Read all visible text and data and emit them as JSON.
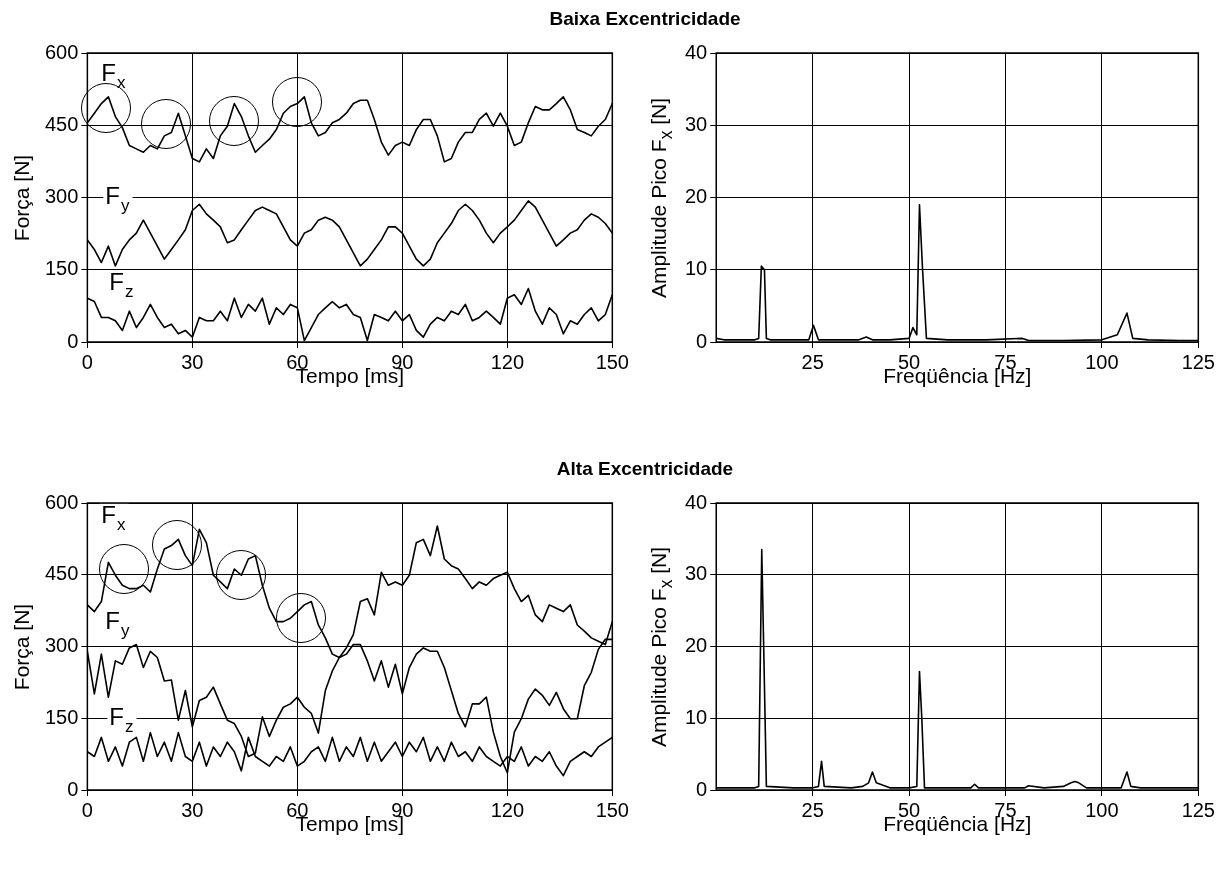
{
  "chart_data": [
    {
      "type": "line",
      "title": "Baixa Excentricidade",
      "xlabel": "Tempo [ms]",
      "ylabel": "Força [N]",
      "xlim": [
        0,
        150
      ],
      "xticks": [
        0,
        30,
        60,
        90,
        120,
        150
      ],
      "ylim": [
        0,
        600
      ],
      "yticks": [
        0,
        150,
        300,
        450,
        600
      ],
      "grid": true,
      "x": [
        0,
        2,
        4,
        6,
        8,
        10,
        12,
        14,
        16,
        18,
        20,
        22,
        24,
        26,
        28,
        30,
        32,
        34,
        36,
        38,
        40,
        42,
        44,
        46,
        48,
        50,
        52,
        54,
        56,
        58,
        60,
        62,
        64,
        66,
        68,
        70,
        72,
        74,
        76,
        78,
        80,
        82,
        84,
        86,
        88,
        90,
        92,
        94,
        96,
        98,
        100,
        102,
        104,
        106,
        108,
        110,
        112,
        114,
        116,
        118,
        120,
        122,
        124,
        126,
        128,
        130,
        132,
        134,
        136,
        138,
        140,
        142,
        144,
        146,
        148,
        150
      ],
      "series": [
        {
          "name": "F$_{x}$",
          "color": "#000000",
          "values": [
            455,
            475,
            495,
            509,
            468,
            445,
            408,
            401,
            394,
            408,
            401,
            428,
            435,
            475,
            428,
            381,
            374,
            401,
            381,
            428,
            448,
            495,
            468,
            428,
            394,
            408,
            421,
            441,
            475,
            489,
            495,
            509,
            455,
            428,
            435,
            455,
            462,
            475,
            495,
            502,
            502,
            462,
            415,
            388,
            408,
            415,
            408,
            441,
            462,
            462,
            428,
            374,
            381,
            415,
            435,
            435,
            462,
            475,
            448,
            475,
            448,
            408,
            415,
            455,
            489,
            482,
            482,
            495,
            509,
            482,
            441,
            435,
            428,
            448,
            462,
            495
          ]
        },
        {
          "name": "F$_{y}$",
          "color": "#000000",
          "values": [
            212,
            192,
            165,
            199,
            158,
            192,
            212,
            226,
            253,
            226,
            199,
            172,
            192,
            212,
            233,
            273,
            286,
            266,
            253,
            239,
            206,
            212,
            233,
            253,
            273,
            280,
            273,
            266,
            239,
            212,
            199,
            226,
            233,
            253,
            259,
            253,
            239,
            212,
            185,
            158,
            172,
            192,
            212,
            239,
            239,
            226,
            199,
            172,
            158,
            172,
            206,
            226,
            246,
            273,
            286,
            273,
            253,
            226,
            206,
            226,
            239,
            253,
            273,
            293,
            280,
            253,
            226,
            199,
            212,
            226,
            233,
            253,
            266,
            259,
            246,
            226
          ]
        },
        {
          "name": "F$_{z}$",
          "color": "#000000",
          "values": [
            91,
            84,
            51,
            51,
            44,
            24,
            64,
            30,
            51,
            78,
            51,
            30,
            37,
            17,
            24,
            10,
            51,
            44,
            44,
            64,
            44,
            91,
            51,
            78,
            64,
            91,
            37,
            71,
            57,
            78,
            71,
            3,
            30,
            57,
            71,
            84,
            71,
            78,
            57,
            51,
            3,
            57,
            51,
            44,
            64,
            44,
            57,
            24,
            10,
            37,
            51,
            44,
            64,
            57,
            78,
            44,
            51,
            64,
            51,
            37,
            91,
            98,
            78,
            111,
            64,
            37,
            71,
            57,
            17,
            44,
            37,
            57,
            71,
            44,
            57,
            98
          ]
        }
      ]
    },
    {
      "type": "line",
      "xlabel": "Freqüência [Hz]",
      "ylabel": "Amplitude Pico  F$_{x}$  [N]",
      "xlim": [
        0,
        125
      ],
      "xticks": [
        25,
        50,
        75,
        100,
        125
      ],
      "ylim": [
        0,
        40
      ],
      "yticks": [
        0,
        10,
        20,
        30,
        40
      ],
      "grid": true,
      "series": [
        {
          "color": "#000000",
          "x": [
            0,
            2,
            4,
            6,
            8,
            10,
            11,
            11.7,
            12.5,
            13,
            14,
            20,
            24,
            25.2,
            26.5,
            30,
            37,
            38.9,
            40.5,
            45,
            50,
            51,
            52,
            52.7,
            53.5,
            54.5,
            60,
            70,
            79.4,
            81,
            90,
            100,
            104,
            106.5,
            108,
            112,
            120,
            125
          ],
          "values": [
            0.5,
            0.3,
            0.3,
            0.3,
            0.3,
            0.3,
            0.5,
            10.5,
            10,
            0.5,
            0.3,
            0.3,
            0.3,
            2.3,
            0.3,
            0.3,
            0.3,
            0.7,
            0.3,
            0.3,
            0.5,
            2,
            1,
            19,
            10,
            0.5,
            0.3,
            0.3,
            0.5,
            0.2,
            0.2,
            0.3,
            1,
            4,
            0.5,
            0.3,
            0.2,
            0.2
          ]
        }
      ]
    },
    {
      "type": "line",
      "title": "Alta Excentricidade",
      "xlabel": "Tempo [ms]",
      "ylabel": "Força [N]",
      "xlim": [
        0,
        150
      ],
      "xticks": [
        0,
        30,
        60,
        90,
        120,
        150
      ],
      "ylim": [
        0,
        600
      ],
      "yticks": [
        0,
        150,
        300,
        450,
        600
      ],
      "grid": true,
      "x": [
        0,
        2,
        4,
        6,
        8,
        10,
        12,
        14,
        16,
        18,
        20,
        22,
        24,
        26,
        28,
        30,
        32,
        34,
        36,
        38,
        40,
        42,
        44,
        46,
        48,
        50,
        52,
        54,
        56,
        58,
        60,
        62,
        64,
        66,
        68,
        70,
        72,
        74,
        76,
        78,
        80,
        82,
        84,
        86,
        88,
        90,
        92,
        94,
        96,
        98,
        100,
        102,
        104,
        106,
        108,
        110,
        112,
        114,
        116,
        118,
        120,
        122,
        124,
        126,
        128,
        130,
        132,
        134,
        136,
        138,
        140,
        142,
        144,
        146,
        148,
        150
      ],
      "series": [
        {
          "name": "F$_{x}$",
          "color": "#000000",
          "values": [
            387,
            373,
            394,
            476,
            449,
            428,
            421,
            421,
            428,
            414,
            462,
            504,
            511,
            524,
            490,
            469,
            545,
            517,
            449,
            435,
            421,
            462,
            449,
            483,
            490,
            428,
            380,
            352,
            352,
            359,
            373,
            387,
            394,
            345,
            318,
            284,
            277,
            297,
            325,
            394,
            400,
            366,
            455,
            428,
            435,
            428,
            449,
            517,
            524,
            490,
            552,
            483,
            469,
            462,
            442,
            421,
            435,
            428,
            442,
            449,
            455,
            421,
            394,
            407,
            366,
            352,
            387,
            380,
            373,
            387,
            345,
            332,
            318,
            311,
            304,
            352
          ]
        },
        {
          "name": "F$_{y}$",
          "color": "#000000",
          "values": [
            290,
            201,
            284,
            194,
            270,
            263,
            297,
            304,
            256,
            290,
            277,
            228,
            230,
            146,
            208,
            132,
            187,
            194,
            215,
            180,
            146,
            139,
            112,
            70,
            77,
            153,
            112,
            146,
            173,
            180,
            194,
            173,
            160,
            119,
            208,
            249,
            277,
            284,
            304,
            304,
            270,
            228,
            270,
            215,
            263,
            201,
            256,
            284,
            297,
            290,
            290,
            256,
            208,
            160,
            132,
            180,
            180,
            194,
            121,
            70,
            36,
            121,
            149,
            190,
            211,
            198,
            177,
            204,
            170,
            149,
            149,
            218,
            246,
            294,
            315,
            315
          ]
        },
        {
          "name": "F$_{z}$",
          "color": "#000000",
          "values": [
            80,
            70,
            110,
            60,
            90,
            50,
            100,
            110,
            60,
            120,
            70,
            100,
            60,
            120,
            70,
            60,
            100,
            50,
            90,
            70,
            100,
            80,
            40,
            110,
            70,
            60,
            50,
            70,
            60,
            90,
            50,
            60,
            80,
            90,
            60,
            110,
            60,
            90,
            70,
            110,
            60,
            100,
            60,
            80,
            100,
            70,
            100,
            80,
            110,
            60,
            90,
            60,
            100,
            70,
            80,
            60,
            90,
            70,
            60,
            50,
            70,
            60,
            90,
            50,
            70,
            60,
            80,
            50,
            30,
            60,
            70,
            80,
            70,
            90,
            100,
            110
          ]
        }
      ]
    },
    {
      "type": "line",
      "xlabel": "Freqüência [Hz]",
      "ylabel": "Amplitude Pico  F$_{x}$  [N]",
      "xlim": [
        0,
        125
      ],
      "xticks": [
        25,
        50,
        75,
        100,
        125
      ],
      "ylim": [
        0,
        40
      ],
      "yticks": [
        0,
        10,
        20,
        30,
        40
      ],
      "grid": true,
      "series": [
        {
          "color": "#000000",
          "x": [
            0,
            5,
            10,
            11,
            11.8,
            12.3,
            13,
            20,
            25,
            26.5,
            27.3,
            28,
            35,
            38,
            39.5,
            40.5,
            41.5,
            45,
            50,
            52,
            52.7,
            53.3,
            54,
            60,
            66,
            67,
            68,
            75,
            80,
            81,
            85,
            90,
            92,
            93,
            94,
            96,
            100,
            105,
            106.5,
            107.5,
            110,
            115,
            120,
            125
          ],
          "values": [
            0.3,
            0.3,
            0.3,
            0.5,
            33.5,
            20,
            0.5,
            0.3,
            0.3,
            0.5,
            4,
            0.5,
            0.3,
            0.5,
            1,
            2.5,
            1,
            0.3,
            0.3,
            0.5,
            16.5,
            10,
            0.3,
            0.3,
            0.3,
            0.8,
            0.3,
            0.3,
            0.3,
            0.6,
            0.3,
            0.5,
            1,
            1.2,
            1,
            0.3,
            0.3,
            0.3,
            2.5,
            0.5,
            0.3,
            0.3,
            0.3,
            0.3
          ]
        }
      ]
    }
  ]
}
